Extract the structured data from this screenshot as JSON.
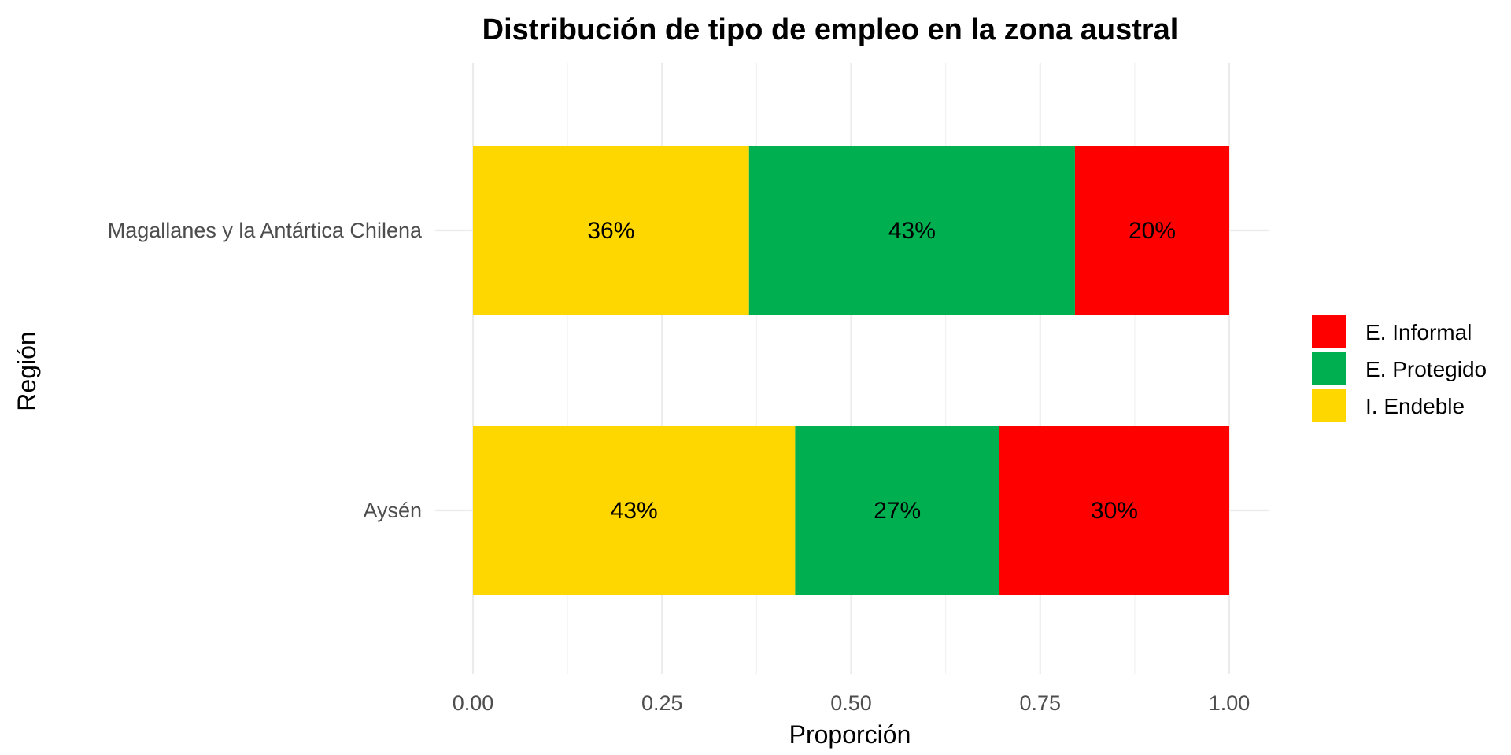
{
  "chart_data": {
    "type": "bar",
    "orientation": "horizontal",
    "stacked": true,
    "title": "Distribución de tipo de empleo en la zona austral",
    "xlabel": "Proporción",
    "ylabel": "Región",
    "xlim": [
      0,
      1
    ],
    "xticks": [
      "0.00",
      "0.25",
      "0.50",
      "0.75",
      "1.00"
    ],
    "grid": true,
    "legend_position": "right",
    "categories": [
      "Magallanes y la Antártica Chilena",
      "Aysén"
    ],
    "series": [
      {
        "name": "I. Endeble",
        "color": "#FFD700",
        "values": [
          0.365,
          0.426
        ],
        "labels": [
          "36%",
          "43%"
        ]
      },
      {
        "name": "E. Protegido",
        "color": "#00B050",
        "values": [
          0.431,
          0.27
        ],
        "labels": [
          "43%",
          "27%"
        ]
      },
      {
        "name": "E. Informal",
        "color": "#FF0000",
        "values": [
          0.204,
          0.304
        ],
        "labels": [
          "20%",
          "30%"
        ]
      }
    ],
    "legend_order": [
      "E. Informal",
      "E. Protegido",
      "I. Endeble"
    ]
  }
}
